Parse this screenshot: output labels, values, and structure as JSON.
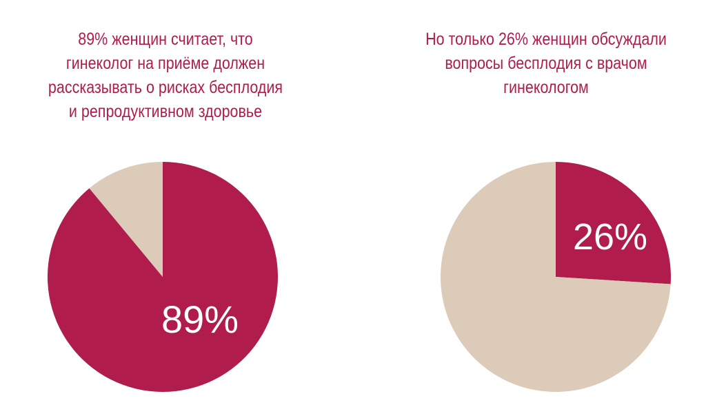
{
  "colors": {
    "accent": "#b01c4b",
    "neutral": "#dccbb9",
    "label_text": "#ffffff",
    "background": "#ffffff"
  },
  "chart_data": [
    {
      "type": "pie",
      "title_lines": [
        "89% женщин считает, что",
        "гинеколог на приёме должен",
        "рассказывать о рисках бесплодия",
        "и репродуктивном здоровье"
      ],
      "values": [
        89,
        11
      ],
      "colors": [
        "#b01c4b",
        "#dccbb9"
      ],
      "data_label": "89%"
    },
    {
      "type": "pie",
      "title_lines": [
        "Но только 26% женщин обсуждали",
        "вопросы бесплодия с врачом",
        "гинекологом"
      ],
      "values": [
        26,
        74
      ],
      "colors": [
        "#b01c4b",
        "#dccbb9"
      ],
      "data_label": "26%"
    }
  ]
}
